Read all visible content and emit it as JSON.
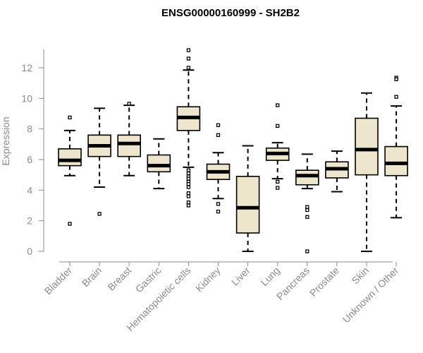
{
  "chart_data": {
    "type": "boxplot",
    "title": "ENSG00000160999 - SH2B2",
    "xlabel": "",
    "ylabel": "Expression",
    "ylim": [
      0,
      13.2
    ],
    "yticks": [
      0,
      2,
      4,
      6,
      8,
      10,
      12
    ],
    "grid": false,
    "legend": "none",
    "colors": {
      "box_fill": "#ede6cc",
      "box_stroke": "#000000",
      "median": "#000000",
      "axis": "#8a8a8a"
    },
    "categories": [
      "Bladder",
      "Brain",
      "Breast",
      "Gastric",
      "Hematopoietic cells",
      "Kidney",
      "Liver",
      "Lung",
      "Pancreas",
      "Prostate",
      "Skin",
      "Unknown / Other"
    ],
    "boxes": [
      {
        "q1": 5.6,
        "median": 5.95,
        "q3": 6.7,
        "whisker_low": 4.95,
        "whisker_high": 7.9,
        "outliers": [
          8.75,
          1.8
        ]
      },
      {
        "q1": 6.2,
        "median": 6.9,
        "q3": 7.6,
        "whisker_low": 4.2,
        "whisker_high": 9.35,
        "outliers": [
          2.45
        ]
      },
      {
        "q1": 6.2,
        "median": 7.05,
        "q3": 7.6,
        "whisker_low": 4.95,
        "whisker_high": 9.55,
        "outliers": [
          9.65
        ]
      },
      {
        "q1": 5.2,
        "median": 5.6,
        "q3": 6.3,
        "whisker_low": 4.1,
        "whisker_high": 7.35,
        "outliers": []
      },
      {
        "q1": 7.9,
        "median": 8.75,
        "q3": 9.45,
        "whisker_low": 5.5,
        "whisker_high": 11.85,
        "outliers": [
          13.15,
          12.6,
          12.0,
          5.3,
          5.1,
          4.9,
          4.75,
          4.55,
          4.4,
          4.2,
          3.8,
          3.6,
          3.2,
          3.0
        ]
      },
      {
        "q1": 4.7,
        "median": 5.2,
        "q3": 5.7,
        "whisker_low": 3.45,
        "whisker_high": 6.45,
        "outliers": [
          8.25,
          7.6,
          3.1,
          2.6
        ]
      },
      {
        "q1": 1.2,
        "median": 2.85,
        "q3": 4.9,
        "whisker_low": 0.0,
        "whisker_high": 6.9,
        "outliers": []
      },
      {
        "q1": 5.95,
        "median": 6.4,
        "q3": 6.75,
        "whisker_low": 4.75,
        "whisker_high": 7.1,
        "outliers": [
          9.55,
          8.2,
          4.55,
          4.15
        ]
      },
      {
        "q1": 4.35,
        "median": 4.95,
        "q3": 5.3,
        "whisker_low": 4.1,
        "whisker_high": 6.35,
        "outliers": [
          2.9,
          2.7,
          2.25,
          0.0
        ]
      },
      {
        "q1": 4.8,
        "median": 5.4,
        "q3": 5.85,
        "whisker_low": 3.9,
        "whisker_high": 6.55,
        "outliers": []
      },
      {
        "q1": 5.0,
        "median": 6.65,
        "q3": 8.7,
        "whisker_low": 0.0,
        "whisker_high": 10.35,
        "outliers": []
      },
      {
        "q1": 4.95,
        "median": 5.75,
        "q3": 6.85,
        "whisker_low": 2.2,
        "whisker_high": 9.5,
        "outliers": [
          11.35,
          11.25,
          10.1
        ]
      }
    ]
  }
}
